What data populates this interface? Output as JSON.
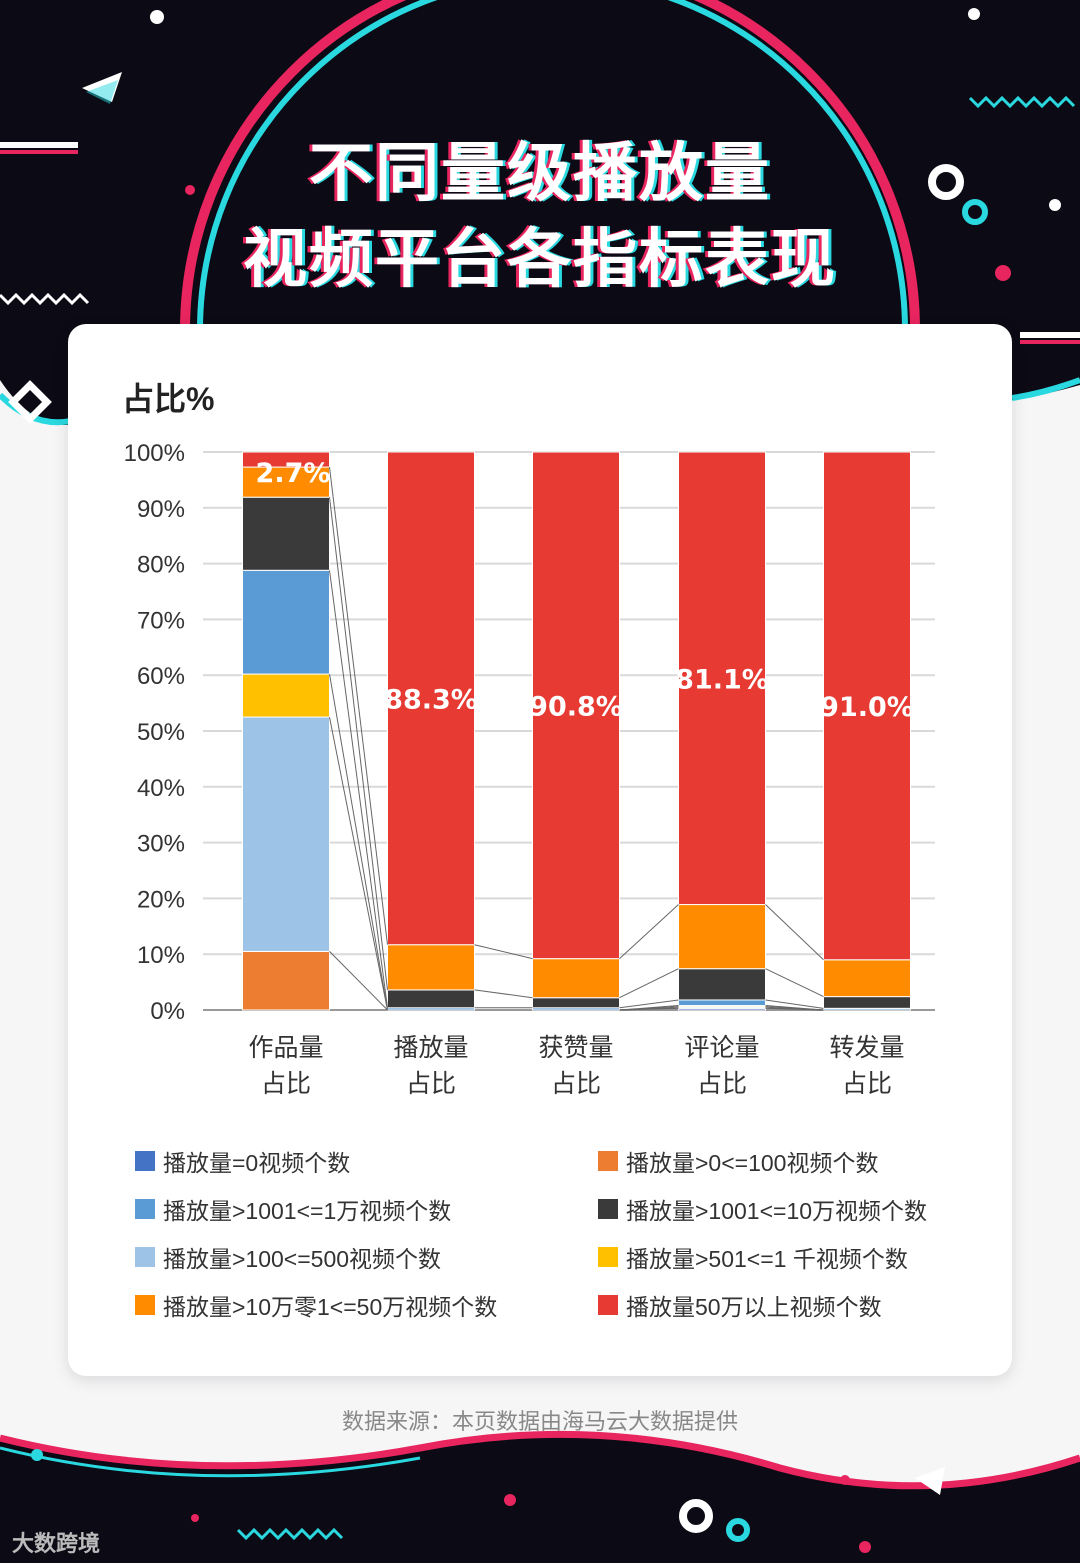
{
  "title_line1": "不同量级播放量",
  "title_line2": "视频平台各指标表现",
  "source": "数据来源：本页数据由海马云大数据提供",
  "logo": "大数跨境",
  "colors": {
    "bg_dark": "#0c0a14",
    "pink": "#e8255e",
    "cyan": "#2ad8e0"
  },
  "chart_data": {
    "type": "bar",
    "stacked": true,
    "ylabel": "占比%",
    "ylim": [
      0,
      100
    ],
    "yticks": [
      "0%",
      "10%",
      "20%",
      "30%",
      "40%",
      "50%",
      "60%",
      "70%",
      "80%",
      "90%",
      "100%"
    ],
    "categories": [
      "作品量\n占比",
      "播放量\n占比",
      "获赞量\n占比",
      "评论量\n占比",
      "转发量\n占比"
    ],
    "category_lines": [
      [
        "作品量",
        "占比"
      ],
      [
        "播放量",
        "占比"
      ],
      [
        "获赞量",
        "占比"
      ],
      [
        "评论量",
        "占比"
      ],
      [
        "转发量",
        "占比"
      ]
    ],
    "grid": true,
    "series": [
      {
        "name": "播放量=0视频个数",
        "color": "#4472c4",
        "values": [
          0,
          0,
          0,
          0.3,
          0
        ]
      },
      {
        "name": "播放量>0<=100视频个数",
        "color": "#ed7d31",
        "values": [
          10.5,
          0,
          0,
          0.1,
          0
        ]
      },
      {
        "name": "播放量>100<=500视频个数",
        "color": "#9dc3e6",
        "values": [
          42.0,
          0,
          0,
          0.2,
          0
        ]
      },
      {
        "name": "播放量>501<=1 千视频个数",
        "color": "#ffc000",
        "values": [
          7.7,
          0,
          0,
          0.2,
          0
        ]
      },
      {
        "name": "播放量>1001<=1万视频个数",
        "color": "#5b9bd5",
        "values": [
          18.6,
          0.4,
          0.4,
          1.0,
          0.3
        ]
      },
      {
        "name": "播放量>1001<=10万视频个数",
        "color": "#3a3a3a",
        "values": [
          13.1,
          3.2,
          1.8,
          5.6,
          2.1
        ]
      },
      {
        "name": "播放量>10万零1<=50万视频个数",
        "color": "#ff8c00",
        "values": [
          5.4,
          8.1,
          7.0,
          11.5,
          6.6
        ]
      },
      {
        "name": "播放量50万以上视频个数",
        "color": "#e63a33",
        "values": [
          2.7,
          88.3,
          90.8,
          81.1,
          91.0
        ]
      }
    ],
    "data_labels": [
      "2.7%",
      "88.3%",
      "90.8%",
      "81.1%",
      "91.0%"
    ],
    "legend": {
      "position": "bottom",
      "left": [
        {
          "name": "播放量=0视频个数",
          "color": "#4472c4"
        },
        {
          "name": "播放量>1001<=1万视频个数",
          "color": "#5b9bd5"
        },
        {
          "name": "播放量>100<=500视频个数",
          "color": "#9dc3e6"
        },
        {
          "name": "播放量>10万零1<=50万视频个数",
          "color": "#ff8c00"
        }
      ],
      "right": [
        {
          "name": "播放量>0<=100视频个数",
          "color": "#ed7d31"
        },
        {
          "name": "播放量>1001<=10万视频个数",
          "color": "#3a3a3a"
        },
        {
          "name": "播放量>501<=1 千视频个数",
          "color": "#ffc000"
        },
        {
          "name": "播放量50万以上视频个数",
          "color": "#e63a33"
        }
      ]
    }
  }
}
